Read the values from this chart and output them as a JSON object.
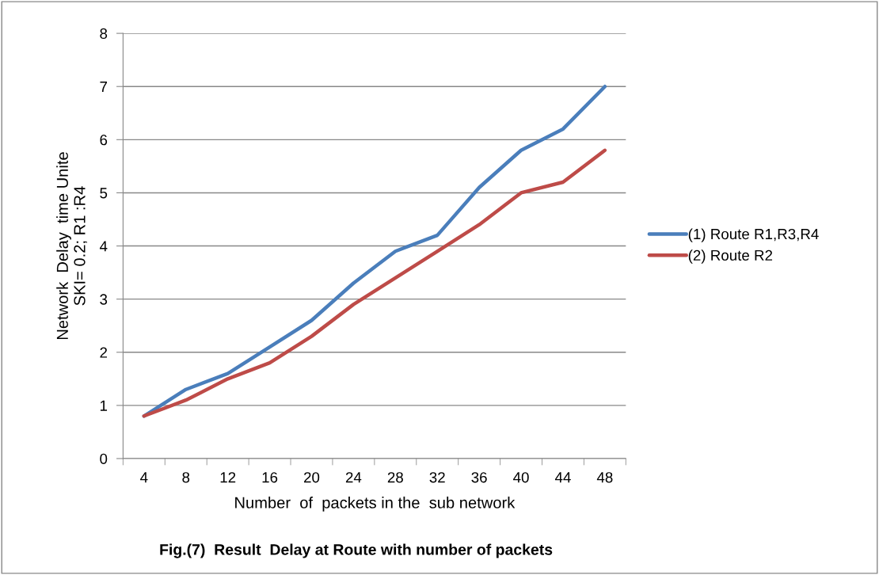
{
  "chart_data": {
    "type": "line",
    "title": "Fig.(7)  Result  Delay at Route with number of packets",
    "xlabel": "Number  of  packets in the  sub network",
    "ylabel": "Network  Delay  time Unite\nSKI= 0.2; R1 :R4",
    "categories": [
      "4",
      "8",
      "12",
      "16",
      "20",
      "24",
      "28",
      "32",
      "36",
      "40",
      "44",
      "48"
    ],
    "series": [
      {
        "name": "(1) Route R1,R3,R4",
        "color": "#4a7ebb",
        "values": [
          0.8,
          1.3,
          1.6,
          2.1,
          2.6,
          3.3,
          3.9,
          4.2,
          5.1,
          5.8,
          6.2,
          7.0
        ]
      },
      {
        "name": "(2) Route R2",
        "color": "#be4b48",
        "values": [
          0.8,
          1.1,
          1.5,
          1.8,
          2.3,
          2.9,
          3.4,
          3.9,
          4.4,
          5.0,
          5.2,
          5.8
        ]
      }
    ],
    "ylim": [
      0,
      8
    ],
    "yticks": [
      0,
      1,
      2,
      3,
      4,
      5,
      6,
      7,
      8
    ],
    "grid": "y",
    "legend": "right",
    "marker": "none",
    "line_style": "solid"
  }
}
